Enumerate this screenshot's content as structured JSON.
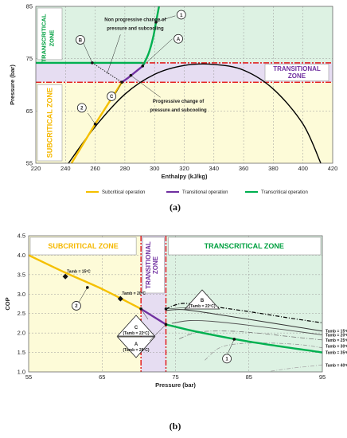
{
  "chart_data": [
    {
      "type": "line",
      "panel_label": "(a)",
      "xlabel": "Enthalpy (kJ/kg)",
      "ylabel": "Pressure (bar)",
      "xlim": [
        220,
        420
      ],
      "ylim": [
        55,
        85
      ],
      "xticks": [
        "220",
        "240",
        "260",
        "280",
        "300",
        "320",
        "340",
        "360",
        "380",
        "400",
        "420"
      ],
      "yticks": [
        "55",
        "65",
        "75",
        "85"
      ],
      "zones": {
        "transcritical": "TRANSCRITICAL ZONE",
        "transitional": "TRANSITIONAL ZONE",
        "subcritical": "SUBCRITICAL ZONE"
      },
      "zone_bounds_bar": {
        "transitional_low": 70.5,
        "transitional_high": 74.2
      },
      "annotations": {
        "non_progressive": [
          "Non progressive change of",
          "pressure and subcooling"
        ],
        "progressive": [
          "Progressive change of",
          "pressure and subcooling"
        ]
      },
      "markers": [
        "1",
        "2",
        "A",
        "B",
        "C"
      ],
      "series": [
        {
          "name": "Subcritical operation",
          "color": "#F5C000",
          "points": [
            [
              244,
              55
            ],
            [
              260,
              62.5
            ],
            [
              278,
              70.5
            ]
          ]
        },
        {
          "name": "Transitional operation",
          "color": "#7030A0",
          "points": [
            [
              278,
              70.5
            ],
            [
              282,
              71.3
            ],
            [
              292,
              73.6
            ]
          ]
        },
        {
          "name": "Transcritical operation",
          "color": "#00B050",
          "points": [
            [
              292,
              73.6
            ],
            [
              296,
              76
            ],
            [
              299,
              79
            ],
            [
              301,
              82
            ],
            [
              303,
              85
            ]
          ]
        },
        {
          "name": "Saturation dome",
          "color": "#000000",
          "points": [
            [
              242,
              55
            ],
            [
              260,
              62
            ],
            [
              280,
              68.2
            ],
            [
              300,
              72
            ],
            [
              320,
              73.7
            ],
            [
              340,
              73.9
            ],
            [
              360,
              72.8
            ],
            [
              380,
              69.2
            ],
            [
              400,
              62.5
            ],
            [
              412,
              55
            ]
          ]
        }
      ],
      "legend": [
        "Subcritical operation",
        "Transitional operation",
        "Transcritical operation"
      ]
    },
    {
      "type": "line",
      "panel_label": "(b)",
      "xlabel": "Pressure (bar)",
      "ylabel": "COP",
      "xlim": [
        55,
        95
      ],
      "ylim": [
        1.0,
        4.5
      ],
      "xticks": [
        "55",
        "65",
        "75",
        "85",
        "95"
      ],
      "yticks": [
        "1.0",
        "1.5",
        "2.0",
        "2.5",
        "3.0",
        "3.5",
        "4.0",
        "4.5"
      ],
      "zones": {
        "subcritical": "SUBCRITICAL ZONE",
        "transitional": "TRANSITIONAL ZONE",
        "transcritical": "TRANSCRITICAL ZONE"
      },
      "zone_bounds_bar": {
        "transitional_low": 70.3,
        "transitional_high": 73.7
      },
      "point_labels": {
        "t15": "Tamb = 15ºC",
        "t20": "Tamb = 20ºC",
        "A": "A",
        "A_sub": "(Tamb = 28ºC)",
        "B": "B",
        "B_sub": "(Tamb = 22ºC)",
        "C": "C",
        "C_sub": "(Tamb = 22ºC)"
      },
      "right_labels": [
        "Tamb = 15ºC",
        "Tamb = 20ºC",
        "Tamb = 25ºC",
        "Tamb = 30ºC",
        "Tamb = 35ºC",
        "Tamb = 40ºC"
      ],
      "markers": [
        "1",
        "2"
      ],
      "series": [
        {
          "name": "Subcritical operation",
          "color": "#F5C000",
          "points": [
            [
              55,
              4.0
            ],
            [
              60,
              3.55
            ],
            [
              65,
              3.13
            ],
            [
              70.3,
              2.62
            ]
          ]
        },
        {
          "name": "Transitional operation",
          "color": "#7030A0",
          "points": [
            [
              70.3,
              2.62
            ],
            [
              73.7,
              2.22
            ]
          ]
        },
        {
          "name": "Transcritical operation",
          "color": "#00B050",
          "points": [
            [
              73.7,
              2.22
            ],
            [
              78,
              2.03
            ],
            [
              85,
              1.78
            ],
            [
              95,
              1.5
            ]
          ]
        },
        {
          "name": "Tamb = 15ºC",
          "color": "#000000",
          "points": [
            [
              73.7,
              2.62
            ],
            [
              76,
              2.76
            ],
            [
              80,
              2.68
            ],
            [
              85,
              2.55
            ],
            [
              90,
              2.4
            ],
            [
              95,
              2.26
            ]
          ]
        },
        {
          "name": "Tamb = 20ºC",
          "color": "#333333",
          "points": [
            [
              73.7,
              2.58
            ],
            [
              76,
              2.6
            ],
            [
              80,
              2.5
            ],
            [
              85,
              2.35
            ],
            [
              90,
              2.2
            ],
            [
              95,
              2.05
            ]
          ]
        },
        {
          "name": "Tamb = 25ºC",
          "color": "#555555",
          "points": [
            [
              74.5,
              2.25
            ],
            [
              77,
              2.32
            ],
            [
              80,
              2.3
            ],
            [
              85,
              2.2
            ],
            [
              90,
              2.08
            ],
            [
              95,
              1.95
            ]
          ]
        },
        {
          "name": "Tamb = 30ºC",
          "color": "#777777",
          "points": [
            [
              75.5,
              1.85
            ],
            [
              78,
              2.02
            ],
            [
              82,
              2.05
            ],
            [
              86,
              2.0
            ],
            [
              90,
              1.92
            ],
            [
              95,
              1.82
            ]
          ]
        },
        {
          "name": "Tamb = 35ºC",
          "color": "#999999",
          "points": [
            [
              79,
              1.3
            ],
            [
              81,
              1.62
            ],
            [
              84,
              1.73
            ],
            [
              88,
              1.74
            ],
            [
              92,
              1.7
            ],
            [
              95,
              1.62
            ]
          ]
        },
        {
          "name": "Tamb = 40ºC",
          "color": "#aaaaaa",
          "points": [
            [
              88,
              1.02
            ],
            [
              91,
              1.1
            ],
            [
              93,
              1.14
            ],
            [
              95,
              1.18
            ]
          ]
        }
      ]
    }
  ]
}
